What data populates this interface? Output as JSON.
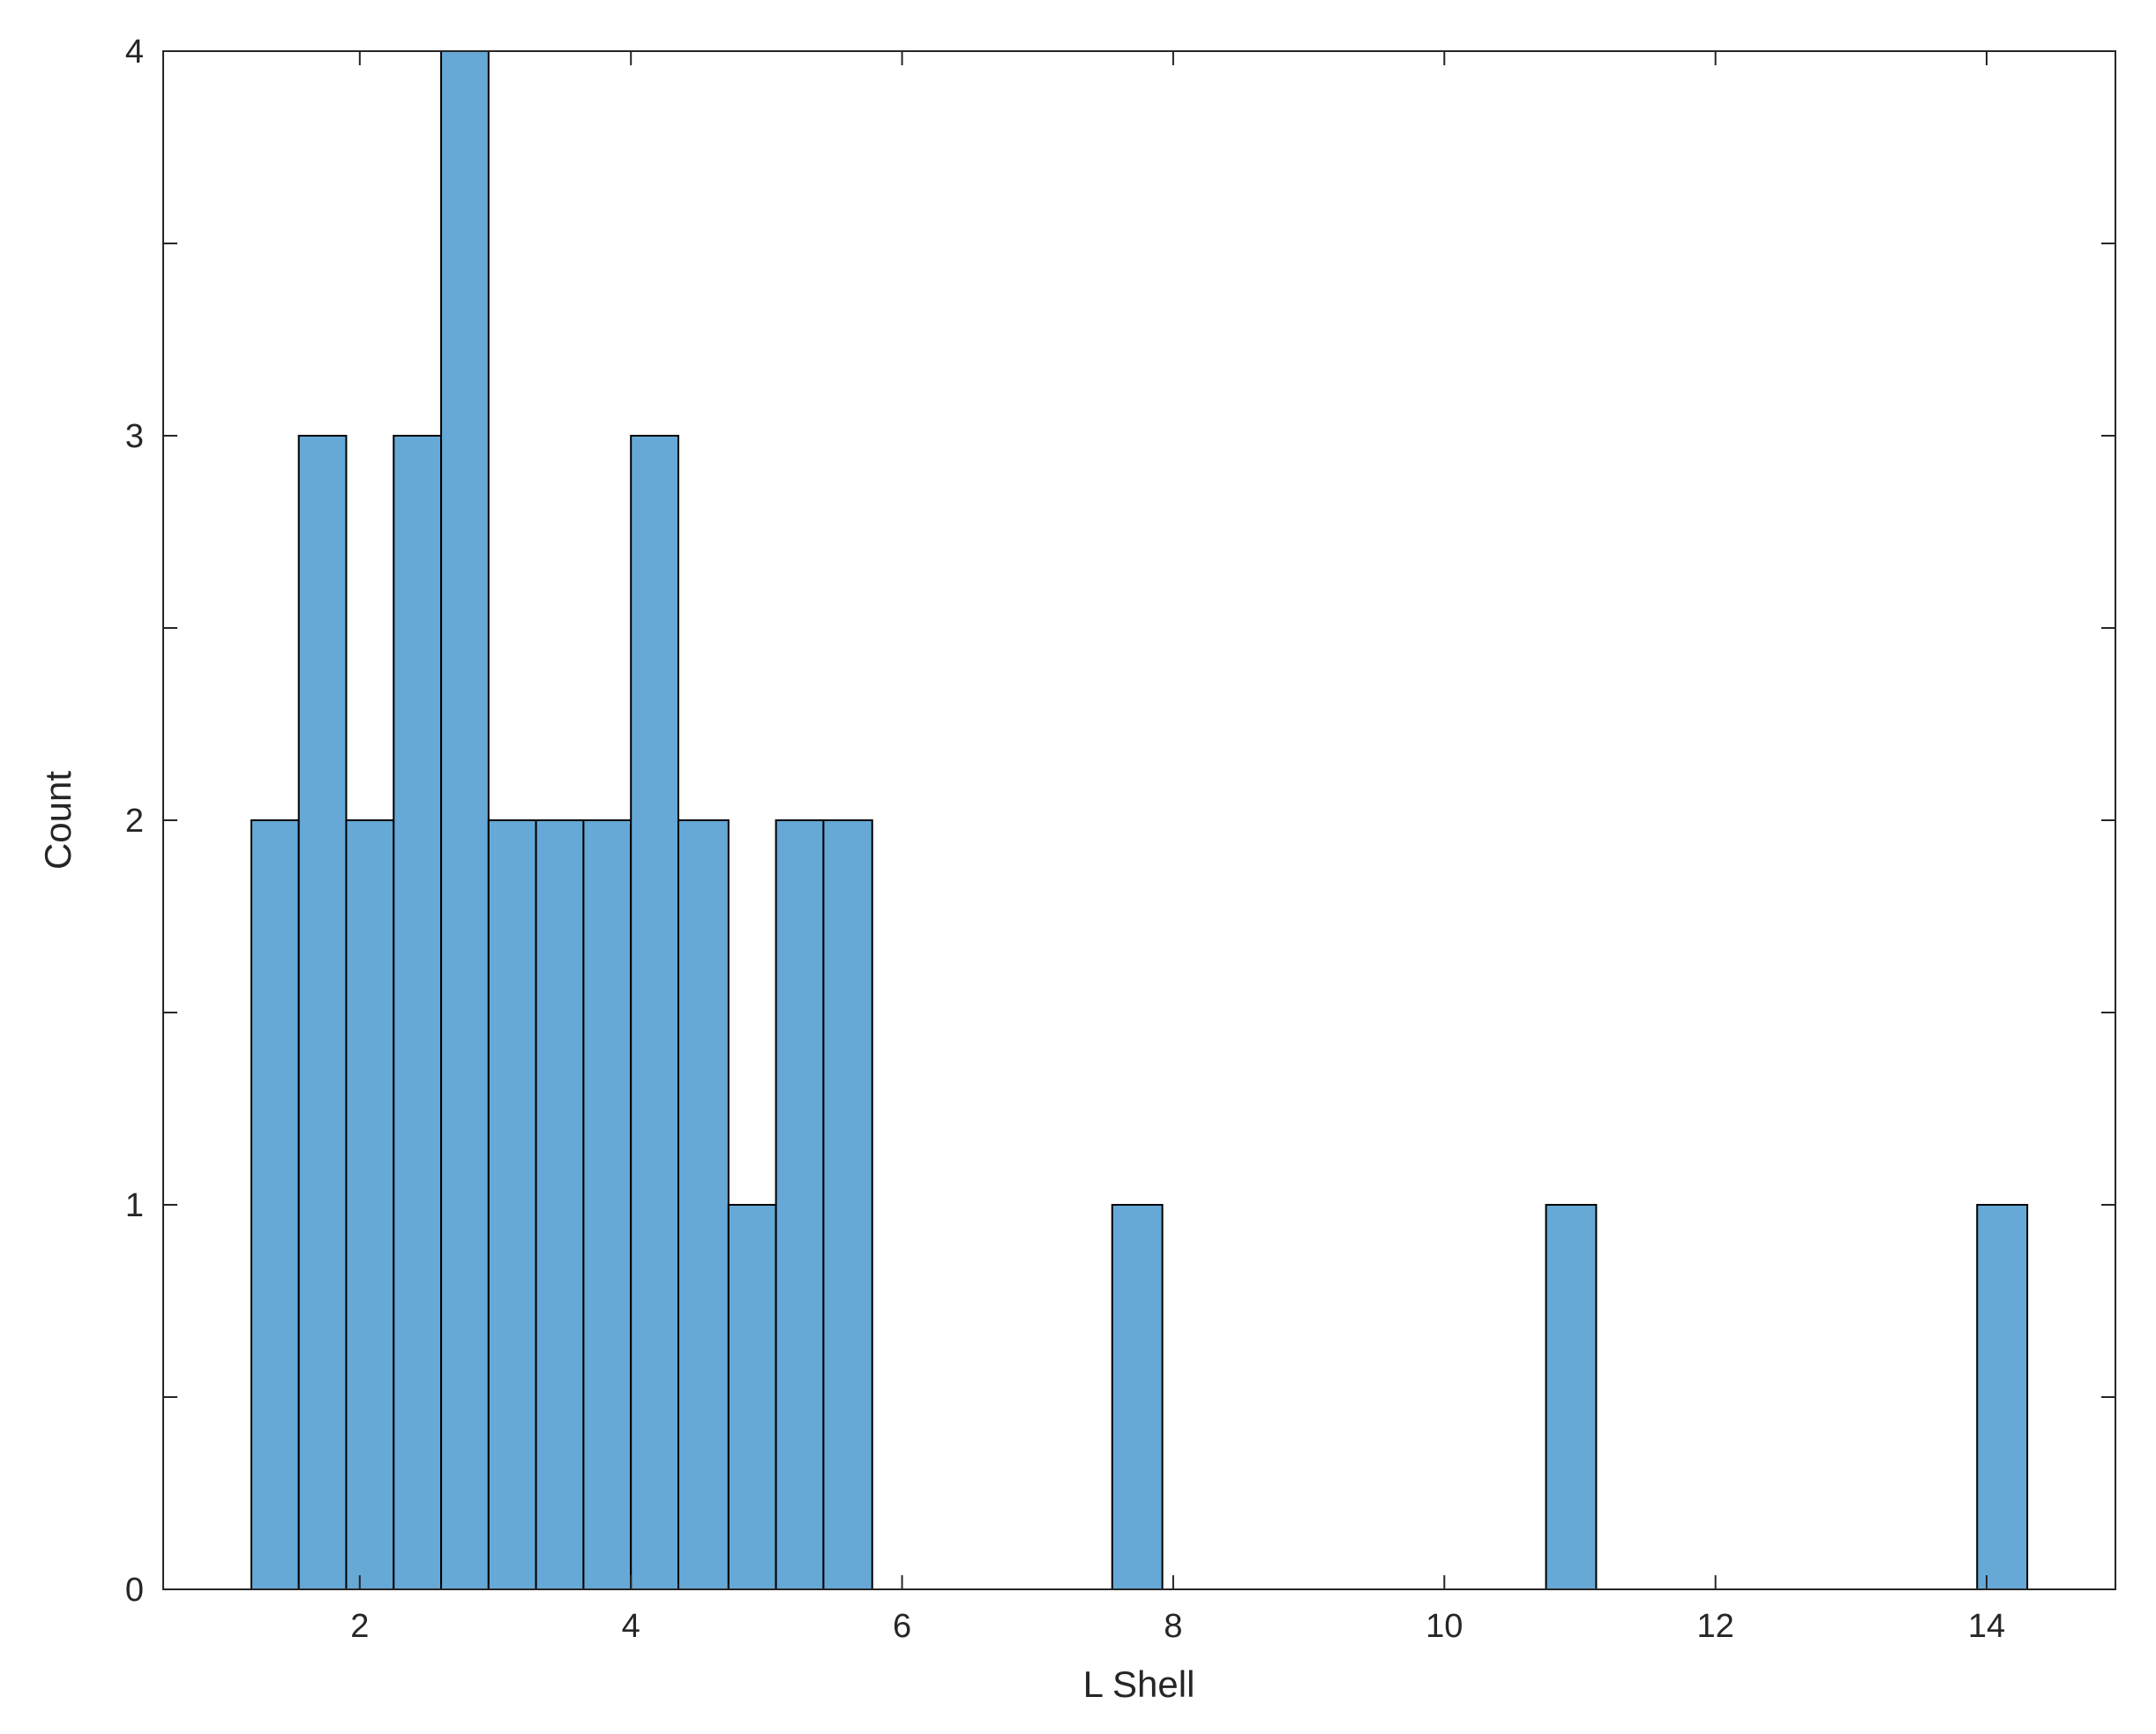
{
  "chart_data": {
    "type": "bar",
    "xlabel": "L Shell",
    "ylabel": "Count",
    "xlim": [
      0.55,
      14.95
    ],
    "ylim": [
      0,
      4
    ],
    "xticks": [
      2,
      4,
      6,
      8,
      10,
      12,
      14
    ],
    "yticks": [
      0,
      1,
      2,
      3,
      4
    ],
    "bar_color": "#66a8d6",
    "edge_color": "#000000",
    "grid": false,
    "bins": [
      {
        "x0": 1.2,
        "x1": 1.55,
        "count": 2
      },
      {
        "x0": 1.55,
        "x1": 1.9,
        "count": 3
      },
      {
        "x0": 1.9,
        "x1": 2.25,
        "count": 2
      },
      {
        "x0": 2.25,
        "x1": 2.6,
        "count": 3
      },
      {
        "x0": 2.6,
        "x1": 2.95,
        "count": 4
      },
      {
        "x0": 2.95,
        "x1": 3.3,
        "count": 2
      },
      {
        "x0": 3.3,
        "x1": 3.65,
        "count": 2
      },
      {
        "x0": 3.65,
        "x1": 4.0,
        "count": 2
      },
      {
        "x0": 4.0,
        "x1": 4.35,
        "count": 3
      },
      {
        "x0": 4.35,
        "x1": 4.72,
        "count": 2
      },
      {
        "x0": 4.72,
        "x1": 5.07,
        "count": 1
      },
      {
        "x0": 5.07,
        "x1": 5.42,
        "count": 2
      },
      {
        "x0": 5.42,
        "x1": 5.78,
        "count": 2
      },
      {
        "x0": 7.55,
        "x1": 7.92,
        "count": 1
      },
      {
        "x0": 10.75,
        "x1": 11.12,
        "count": 1
      },
      {
        "x0": 13.93,
        "x1": 14.3,
        "count": 1
      }
    ]
  }
}
